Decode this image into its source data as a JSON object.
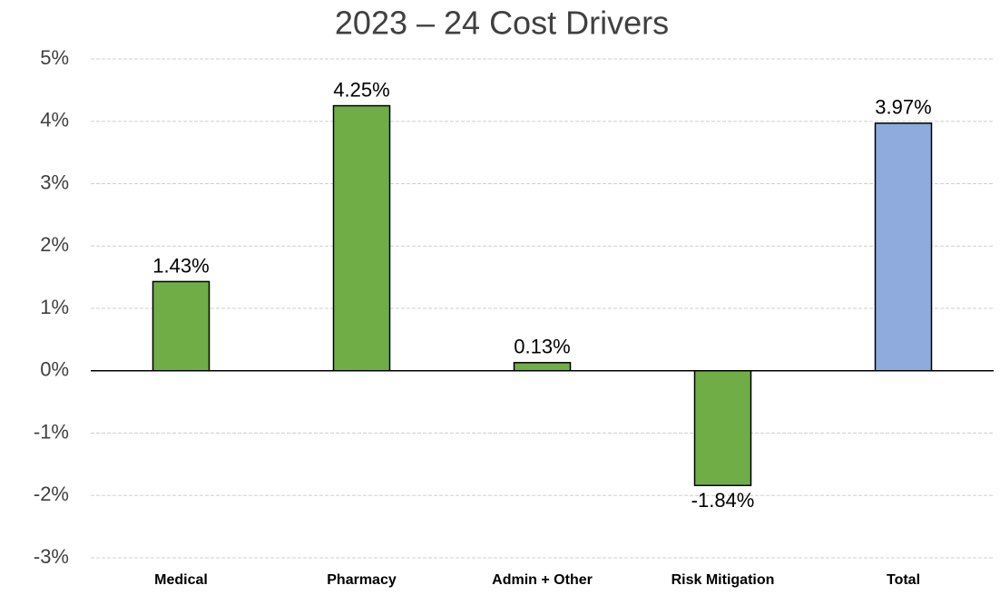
{
  "chart_data": {
    "type": "bar",
    "title": "2023 – 24 Cost Drivers",
    "categories": [
      "Medical",
      "Pharmacy",
      "Admin + Other",
      "Risk Mitigation",
      "Total"
    ],
    "values": [
      1.43,
      4.25,
      0.13,
      -1.84,
      3.97
    ],
    "value_labels": [
      "1.43%",
      "4.25%",
      "0.13%",
      "-1.84%",
      "3.97%"
    ],
    "colors": [
      "#70ad47",
      "#70ad47",
      "#70ad47",
      "#70ad47",
      "#8faadc"
    ],
    "ylim": [
      -3,
      5
    ],
    "yticks": [
      {
        "value": -3,
        "label": "-3%"
      },
      {
        "value": -2,
        "label": "-2%"
      },
      {
        "value": -1,
        "label": "-1%"
      },
      {
        "value": 0,
        "label": "0%"
      },
      {
        "value": 1,
        "label": "1%"
      },
      {
        "value": 2,
        "label": "2%"
      },
      {
        "value": 3,
        "label": "3%"
      },
      {
        "value": 4,
        "label": "4%"
      },
      {
        "value": 5,
        "label": "5%"
      }
    ],
    "grid": true
  }
}
